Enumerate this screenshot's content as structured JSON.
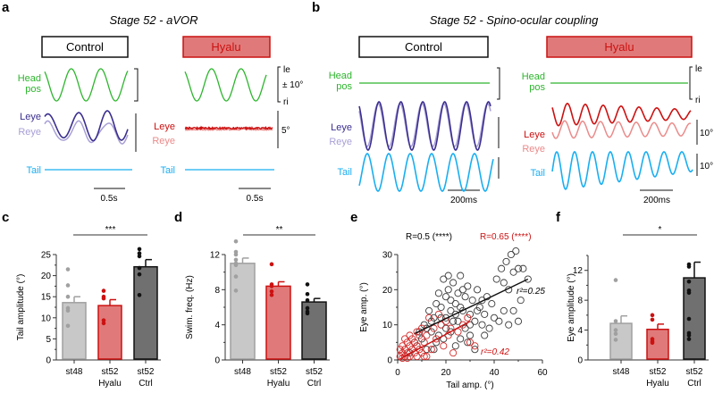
{
  "colors": {
    "head": "#2db52d",
    "leye": "#3b2f8f",
    "reye": "#a89fd6",
    "leye_hyalu": "#cc1111",
    "reye_hyalu": "#eb8a8a",
    "tail": "#19aef0",
    "st48": "#c8c8c8",
    "hyalu": "#e07a7a",
    "ctrl": "#707070",
    "scatter_ctrl": "#3a3a3a",
    "scatter_hyalu": "#d42a2a"
  },
  "panel_a": {
    "label": "a",
    "title": "Stage 52 - aVOR",
    "control": "Control",
    "hyalu": "Hyalu",
    "head_label": [
      "Head",
      "pos"
    ],
    "leye": "Leye",
    "reye": "Reye",
    "tail": "Tail",
    "scale_le": "le",
    "scale_deg": "± 10°",
    "scale_ri": "ri",
    "eye_scale": "5°",
    "time_scale": "0.5s"
  },
  "panel_b": {
    "label": "b",
    "title": "Stage 52 - Spino-ocular coupling",
    "control": "Control",
    "hyalu": "Hyalu",
    "head_label": [
      "Head",
      "pos"
    ],
    "leye": "Leye",
    "reye": "Reye",
    "tail": "Tail",
    "scale_le": "le",
    "scale_ri": "ri",
    "eye_scale": "10°",
    "tail_scale": "10°",
    "time_scale": "200ms"
  },
  "chart_data": [
    {
      "panel": "c",
      "type": "bar",
      "ylabel": "Tail amplitude (°)",
      "ylim": [
        0,
        25
      ],
      "yticks": [
        0,
        5,
        10,
        15,
        20,
        25
      ],
      "categories": [
        [
          "st48"
        ],
        [
          "st52",
          "Hyalu"
        ],
        [
          "st52",
          "Ctrl"
        ]
      ],
      "values": [
        13.6,
        12.9,
        22.1
      ],
      "errors": [
        1.4,
        1.4,
        1.7
      ],
      "points": [
        [
          21.5,
          17.7,
          15.0,
          12.3,
          11.7,
          8.1
        ],
        [
          16.4,
          15.0,
          14.6,
          9.4,
          8.7
        ],
        [
          26.3,
          25.3,
          24.6,
          21.8,
          20.3,
          15.4
        ]
      ],
      "significance": {
        "from": 0,
        "to": 2,
        "label": "***"
      }
    },
    {
      "panel": "d",
      "type": "bar",
      "ylabel": "Swim. freq. (Hz)",
      "ylim": [
        0,
        12
      ],
      "yticks": [
        0,
        4,
        8,
        12
      ],
      "categories": [
        [
          "st48"
        ],
        [
          "st52",
          "Hyalu"
        ],
        [
          "st52",
          "Ctrl"
        ]
      ],
      "values": [
        11.0,
        8.4,
        6.6
      ],
      "errors": [
        0.6,
        0.5,
        0.4
      ],
      "points": [
        [
          13.5,
          12.3,
          12.0,
          11.4,
          11.0,
          10.8,
          9.5,
          7.9
        ],
        [
          10.9,
          8.6,
          8.4,
          7.8,
          7.4
        ],
        [
          8.6,
          7.5,
          6.8,
          5.9,
          5.5,
          5.3
        ]
      ],
      "significance": {
        "from": 0,
        "to": 2,
        "label": "**"
      }
    },
    {
      "panel": "e",
      "type": "scatter",
      "xlabel": "Tail amp. (°)",
      "ylabel": "Eye amp. (°)",
      "xlim": [
        0,
        60
      ],
      "ylim": [
        0,
        30
      ],
      "xticks": [
        0,
        20,
        40,
        60
      ],
      "yticks": [
        0,
        10,
        20,
        30
      ],
      "series": [
        {
          "group": "control",
          "R": "R=0.5 (****)",
          "r2": "r²=0.25",
          "fit": [
            [
              7,
              7.5
            ],
            [
              54,
              23
            ]
          ],
          "points": [
            [
              5,
              2
            ],
            [
              8,
              4
            ],
            [
              10,
              6
            ],
            [
              12,
              3
            ],
            [
              14,
              8
            ],
            [
              15,
              12
            ],
            [
              16,
              5
            ],
            [
              18,
              10
            ],
            [
              18,
              15
            ],
            [
              20,
              12
            ],
            [
              20,
              18
            ],
            [
              21,
              20
            ],
            [
              22,
              14
            ],
            [
              22,
              8
            ],
            [
              23,
              22
            ],
            [
              24,
              16
            ],
            [
              25,
              11
            ],
            [
              25,
              19
            ],
            [
              26,
              24
            ],
            [
              27,
              14
            ],
            [
              28,
              9
            ],
            [
              28,
              18
            ],
            [
              29,
              21
            ],
            [
              30,
              13
            ],
            [
              30,
              7
            ],
            [
              31,
              17
            ],
            [
              32,
              11
            ],
            [
              33,
              20
            ],
            [
              34,
              15
            ],
            [
              35,
              10
            ],
            [
              36,
              13
            ],
            [
              37,
              18
            ],
            [
              38,
              9
            ],
            [
              40,
              12
            ],
            [
              41,
              23
            ],
            [
              42,
              11
            ],
            [
              43,
              26
            ],
            [
              44,
              14
            ],
            [
              45,
              28
            ],
            [
              46,
              10
            ],
            [
              47,
              30
            ],
            [
              48,
              25
            ],
            [
              49,
              31
            ],
            [
              50,
              26
            ],
            [
              51,
              17
            ],
            [
              52,
              26
            ],
            [
              54,
              23
            ],
            [
              13,
              14
            ],
            [
              17,
              19
            ],
            [
              19,
              23
            ],
            [
              21,
              24
            ],
            [
              11,
              10
            ],
            [
              9,
              8
            ],
            [
              7,
              5
            ],
            [
              15,
              3
            ],
            [
              17,
              7
            ],
            [
              24,
              4
            ],
            [
              26,
              6
            ],
            [
              32,
              3
            ],
            [
              29,
              5
            ],
            [
              36,
              7
            ],
            [
              39,
              16
            ],
            [
              44,
              22
            ],
            [
              48,
              14
            ],
            [
              50,
              11
            ],
            [
              46,
              20
            ],
            [
              27,
              20
            ],
            [
              23,
              11
            ],
            [
              19,
              6
            ],
            [
              16,
              16
            ],
            [
              20,
              9
            ],
            [
              22,
              17
            ],
            [
              24,
              13
            ],
            [
              26,
              15
            ],
            [
              18,
              12
            ],
            [
              14,
              11
            ],
            [
              12,
              9
            ],
            [
              33,
              14
            ],
            [
              35,
              17
            ],
            [
              30,
              10
            ]
          ]
        },
        {
          "group": "hyalu",
          "R": "R=0.65 (****)",
          "r2": "r²=0.42",
          "fit": [
            [
              1,
              0.3
            ],
            [
              30,
              11
            ]
          ],
          "points": [
            [
              1,
              1
            ],
            [
              2,
              2
            ],
            [
              2,
              4
            ],
            [
              3,
              1
            ],
            [
              3,
              3
            ],
            [
              4,
              5
            ],
            [
              4,
              2
            ],
            [
              5,
              1
            ],
            [
              5,
              4
            ],
            [
              6,
              3
            ],
            [
              6,
              6
            ],
            [
              7,
              2
            ],
            [
              7,
              5
            ],
            [
              8,
              4
            ],
            [
              8,
              1
            ],
            [
              9,
              3
            ],
            [
              9,
              7
            ],
            [
              10,
              2
            ],
            [
              10,
              9
            ],
            [
              11,
              5
            ],
            [
              12,
              1
            ],
            [
              12,
              7
            ],
            [
              13,
              12
            ],
            [
              14,
              3
            ],
            [
              15,
              9
            ],
            [
              16,
              6
            ],
            [
              17,
              13
            ],
            [
              18,
              10
            ],
            [
              19,
              4
            ],
            [
              20,
              11
            ],
            [
              21,
              7
            ],
            [
              22,
              9
            ],
            [
              23,
              2
            ],
            [
              25,
              8
            ],
            [
              27,
              10
            ],
            [
              29,
              12
            ],
            [
              30,
              5
            ],
            [
              32,
              4
            ],
            [
              3,
              6
            ],
            [
              5,
              7
            ],
            [
              1,
              3
            ],
            [
              2,
              0.5
            ],
            [
              4,
              0.5
            ],
            [
              8,
              8
            ],
            [
              11,
              1
            ]
          ]
        }
      ]
    },
    {
      "panel": "f",
      "type": "bar",
      "ylabel": "Eye amplitude (°)",
      "ylim": [
        0,
        14
      ],
      "yticks": [
        0,
        4,
        8,
        12
      ],
      "categories": [
        [
          "st48"
        ],
        [
          "st52",
          "Hyalu"
        ],
        [
          "st52",
          "Ctrl"
        ]
      ],
      "values": [
        4.9,
        4.1,
        11.0
      ],
      "errors": [
        1.0,
        0.7,
        2.1
      ],
      "points": [
        [
          10.7,
          5.2,
          4.0,
          3.5,
          2.7
        ],
        [
          6.0,
          5.4,
          2.8,
          2.5,
          2.3
        ],
        [
          12.8,
          12.5,
          10.5,
          9.3,
          9.0,
          5.5,
          3.6,
          3.3,
          2.8
        ]
      ],
      "significance": {
        "from": 0,
        "to": 2,
        "label": "*"
      }
    }
  ]
}
